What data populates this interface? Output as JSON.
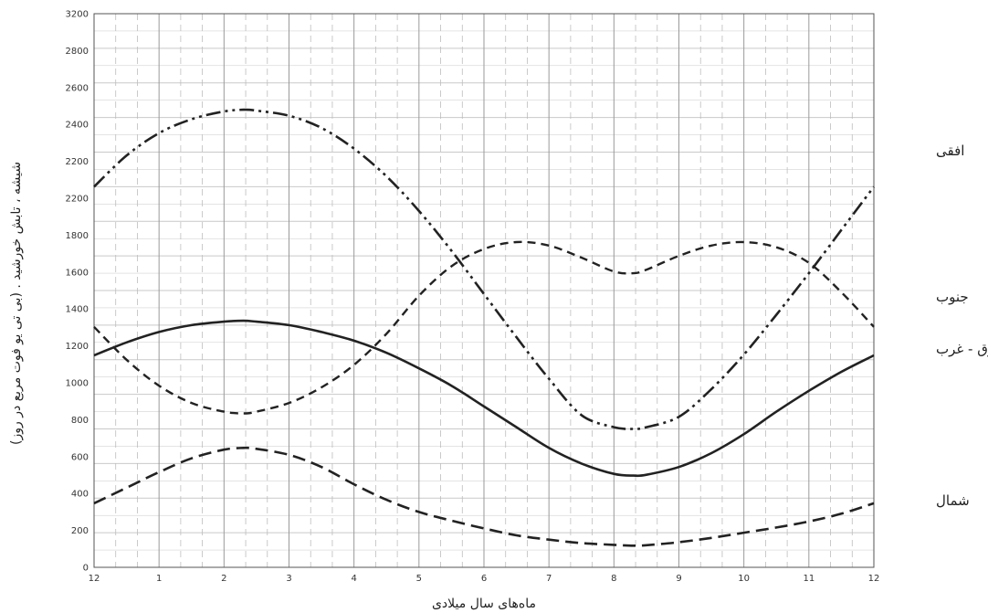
{
  "chart_data": {
    "type": "line",
    "xlabel": "ماه‌های سال میلادی",
    "ylabel": "شیشه ، تابش خورشید . (بی تی یو فوت مربع در روز)",
    "x_ticks": [
      "12",
      "1",
      "2",
      "3",
      "4",
      "5",
      "6",
      "7",
      "8",
      "9",
      "10",
      "11",
      "12"
    ],
    "y_ticks": [
      "0",
      "200",
      "400",
      "600",
      "800",
      "1000",
      "1200",
      "1400",
      "1600",
      "1800",
      "2200",
      "2200",
      "2400",
      "2600",
      "2800",
      "3200"
    ],
    "xlim": [
      0,
      12
    ],
    "ylim": [
      0,
      3200
    ],
    "grid": true,
    "series": [
      {
        "name": "افقی",
        "style": "dash-dot-dot",
        "x": [
          0,
          0.5,
          1,
          1.5,
          2,
          2.3,
          2.5,
          3,
          3.5,
          4,
          4.5,
          5,
          5.5,
          6,
          6.5,
          7,
          7.5,
          8,
          8.3,
          8.5,
          9,
          9.5,
          10,
          10.5,
          11,
          11.5,
          12
        ],
        "y": [
          2200,
          2380,
          2510,
          2590,
          2635,
          2645,
          2640,
          2610,
          2540,
          2420,
          2260,
          2060,
          1830,
          1580,
          1330,
          1090,
          880,
          810,
          800,
          810,
          870,
          1030,
          1230,
          1460,
          1700,
          1950,
          2200
        ]
      },
      {
        "name": "جنوب",
        "style": "dashed",
        "x": [
          0,
          0.5,
          1,
          1.5,
          2,
          2.3,
          2.5,
          3,
          3.5,
          4,
          4.5,
          5,
          5.5,
          6,
          6.5,
          7,
          7.5,
          8,
          8.3,
          8.5,
          9,
          9.5,
          10,
          10.5,
          11,
          11.5,
          12
        ],
        "y": [
          1390,
          1200,
          1050,
          950,
          900,
          890,
          900,
          950,
          1040,
          1170,
          1350,
          1570,
          1740,
          1840,
          1880,
          1860,
          1790,
          1710,
          1700,
          1720,
          1800,
          1860,
          1880,
          1850,
          1760,
          1590,
          1390
        ]
      },
      {
        "name": "شرق - غرب",
        "style": "solid",
        "x": [
          0,
          0.5,
          1,
          1.5,
          2,
          2.3,
          2.5,
          3,
          3.5,
          4,
          4.5,
          5,
          5.5,
          6,
          6.5,
          7,
          7.5,
          8,
          8.3,
          8.5,
          9,
          9.5,
          10,
          10.5,
          11,
          11.5,
          12
        ],
        "y": [
          1225,
          1300,
          1360,
          1400,
          1420,
          1425,
          1420,
          1400,
          1360,
          1310,
          1240,
          1150,
          1050,
          930,
          810,
          690,
          600,
          540,
          530,
          535,
          580,
          660,
          770,
          900,
          1020,
          1130,
          1225
        ]
      },
      {
        "name": "شمال",
        "style": "dashed-bold",
        "x": [
          0,
          0.5,
          1,
          1.5,
          2,
          2.3,
          2.5,
          3,
          3.5,
          4,
          4.5,
          5,
          5.5,
          6,
          6.5,
          7,
          7.5,
          8,
          8.3,
          8.5,
          9,
          9.5,
          10,
          10.5,
          11,
          11.5,
          12
        ],
        "y": [
          370,
          460,
          550,
          630,
          680,
          690,
          685,
          650,
          580,
          480,
          390,
          320,
          270,
          225,
          185,
          160,
          140,
          130,
          125,
          128,
          145,
          170,
          200,
          230,
          265,
          310,
          370
        ]
      }
    ]
  }
}
